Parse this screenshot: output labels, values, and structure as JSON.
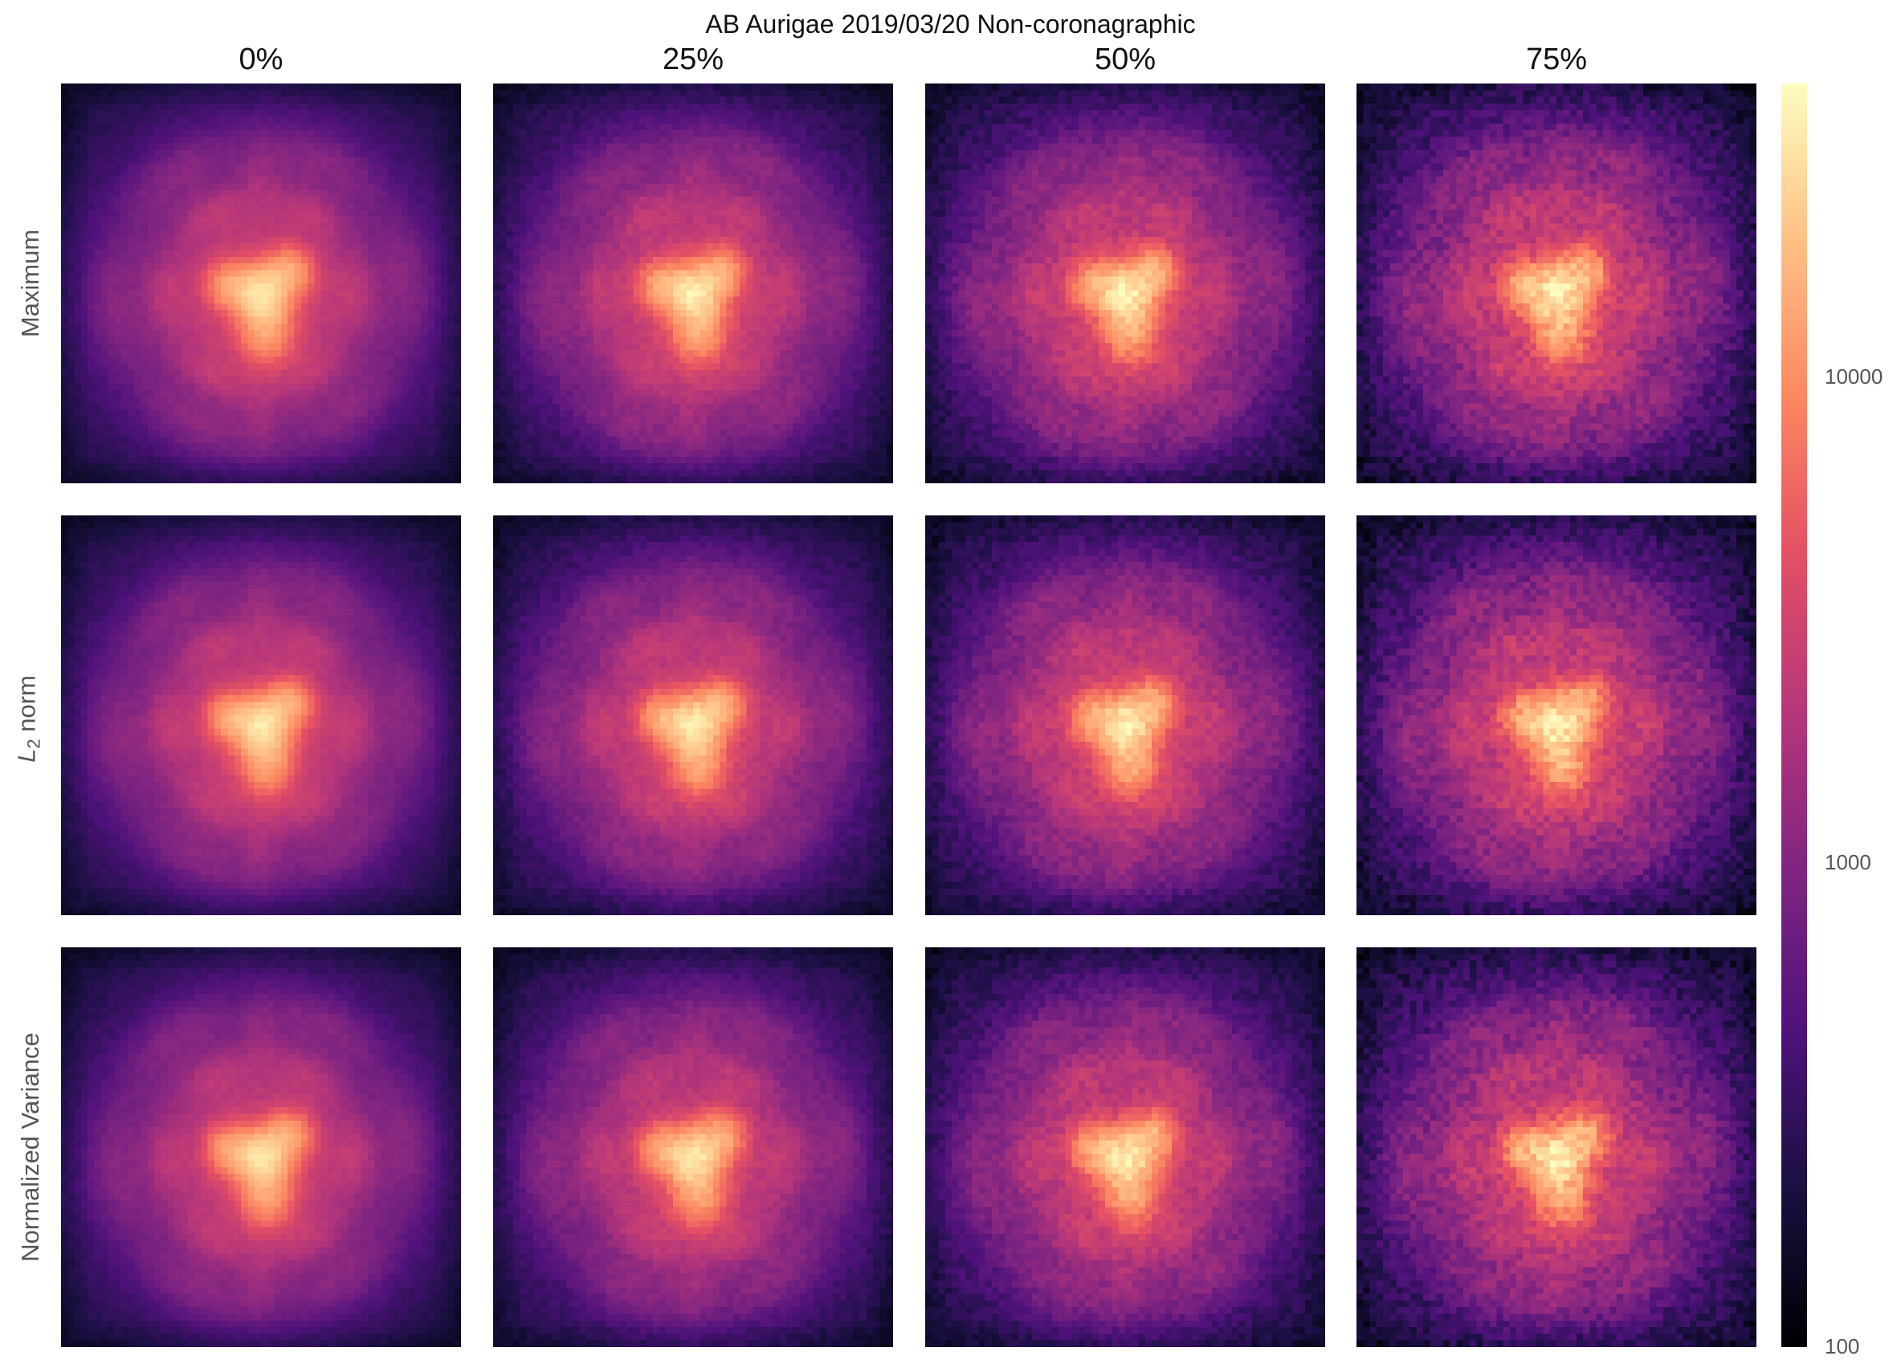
{
  "figure": {
    "title": "AB Aurigae 2019/03/20 Non-coronagraphic"
  },
  "chart_data": {
    "type": "heatmap",
    "title": "AB Aurigae 2019/03/20 Non-coronagraphic",
    "colormap": "magma",
    "scale": "log",
    "columns": [
      "0%",
      "25%",
      "50%",
      "75%"
    ],
    "rows": [
      {
        "prefix": "",
        "main": "Maximum",
        "subscript": "",
        "suffix": ""
      },
      {
        "prefix": "",
        "main": "L",
        "subscript": "2",
        "suffix": " norm"
      },
      {
        "prefix": "",
        "main": "Normalized Variance",
        "subscript": "",
        "suffix": ""
      }
    ],
    "colorbar": {
      "range": [
        100,
        40000
      ],
      "ticks": [
        {
          "value": 100,
          "label": "100"
        },
        {
          "value": 1000,
          "label": "1000"
        },
        {
          "value": 10000,
          "label": "10000"
        }
      ]
    },
    "peak_values": [
      [
        26000,
        27000,
        28000,
        29000
      ],
      [
        26000,
        27000,
        28000,
        29000
      ],
      [
        25000,
        26000,
        27000,
        28000
      ]
    ],
    "background_level": 150
  }
}
